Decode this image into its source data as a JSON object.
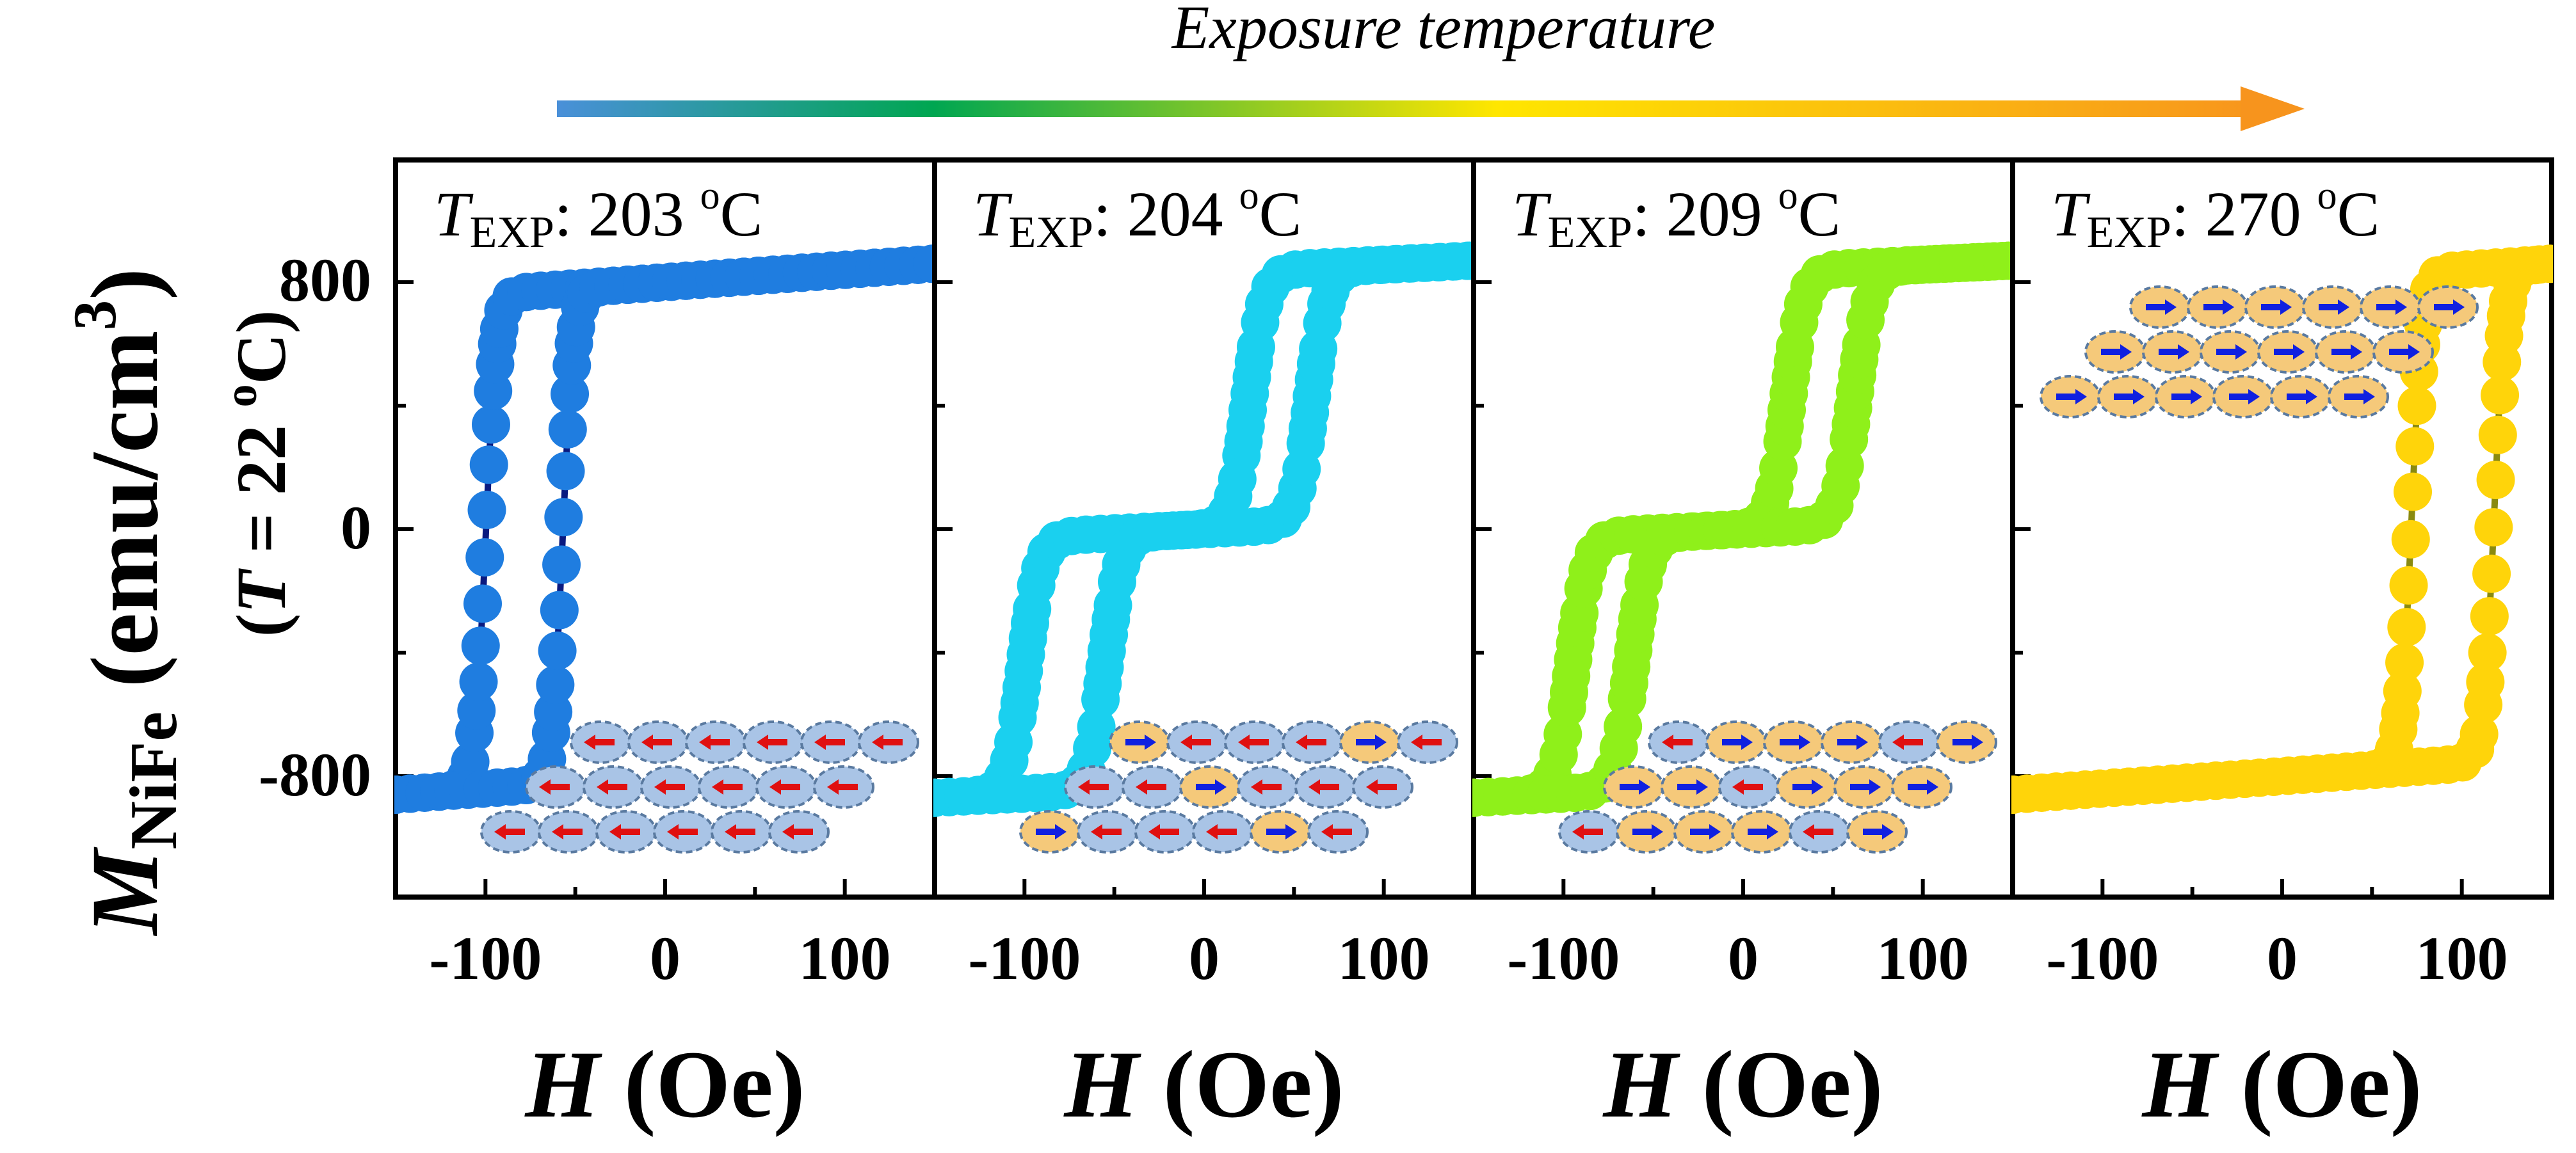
{
  "header": {
    "title": "Exposure temperature",
    "colors": [
      "#4a90d9",
      "#00a651",
      "#ffe600",
      "#f7941d"
    ]
  },
  "y_axis": {
    "label_main": "M",
    "label_sub": "NiFe",
    "label_unit": " (emu/cm",
    "label_unit_sup": "3",
    "label_unit_close": ")",
    "label2_open": "(",
    "label2_var": "T",
    "label2_eq": " = 22 ",
    "label2_deg": "o",
    "label2_close": "C)",
    "ticks": [
      "800",
      "0",
      "-800"
    ]
  },
  "x_axis": {
    "label_var": "H",
    "label_unit": " (Oe)",
    "ticks": [
      "-100",
      "0",
      "100"
    ]
  },
  "chart_data": [
    {
      "type": "line",
      "panel_label_var": "T",
      "panel_label_sub": "EXP",
      "panel_label_value": ":  203 ",
      "panel_label_deg": "o",
      "panel_label_unit": "C",
      "marker_color": "#1f7de0",
      "line_color": "#0a1a80",
      "xlabel": "H (Oe)",
      "ylabel": "M_NiFe (emu/cm3)",
      "xlim": [
        -150,
        150
      ],
      "ylim": [
        -1200,
        1200
      ],
      "loop": "single",
      "hc_left": -100,
      "hc_right": -57,
      "ms": 800,
      "domain_arrows": "left-red"
    },
    {
      "type": "line",
      "panel_label_var": "T",
      "panel_label_sub": "EXP",
      "panel_label_value": ":  204 ",
      "panel_label_deg": "o",
      "panel_label_unit": "C",
      "marker_color": "#1ad0ef",
      "line_color": "#0a1a80",
      "xlabel": "H (Oe)",
      "ylabel": "M_NiFe (emu/cm3)",
      "xlim": [
        -150,
        150
      ],
      "ylim": [
        -1200,
        1200
      ],
      "loop": "double",
      "hc_left": -100,
      "hc_right": -55,
      "hc2_left": 25,
      "hc2_right": 60,
      "ms": 830,
      "domain_arrows": "mixed-mostly-left"
    },
    {
      "type": "line",
      "panel_label_var": "T",
      "panel_label_sub": "EXP",
      "panel_label_value": ":  209 ",
      "panel_label_deg": "o",
      "panel_label_unit": "C",
      "marker_color": "#8ff01a",
      "line_color": "#0a1a80",
      "xlabel": "H (Oe)",
      "ylabel": "M_NiFe (emu/cm3)",
      "xlim": [
        -150,
        150
      ],
      "ylim": [
        -1200,
        1200
      ],
      "loop": "double",
      "hc_left": -95,
      "hc_right": -62,
      "hc2_left": 25,
      "hc2_right": 62,
      "ms": 830,
      "domain_arrows": "mixed-mostly-right"
    },
    {
      "type": "line",
      "panel_label_var": "T",
      "panel_label_sub": "EXP",
      "panel_label_value": ":  270 ",
      "panel_label_deg": "o",
      "panel_label_unit": "C",
      "marker_color": "#ffd40a",
      "line_color": "#8a8a10",
      "xlabel": "H (Oe)",
      "ylabel": "M_NiFe (emu/cm3)",
      "xlim": [
        -150,
        150
      ],
      "ylim": [
        -1200,
        1200
      ],
      "loop": "single",
      "hc_left": 72,
      "hc_right": 118,
      "ms": 800,
      "domain_arrows": "right-blue"
    }
  ]
}
